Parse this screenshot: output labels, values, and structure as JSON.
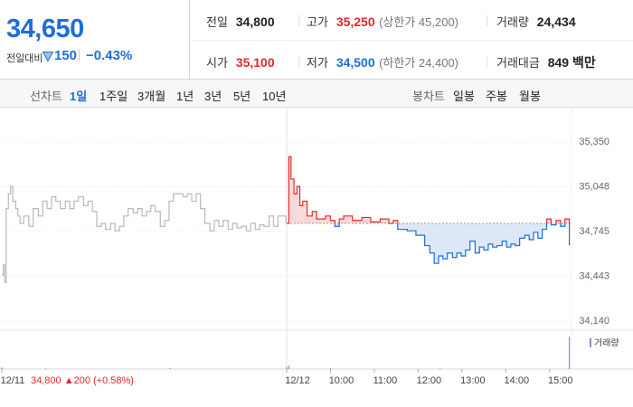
{
  "quote": {
    "price": "34,650",
    "change_label": "전일대비",
    "change": "150",
    "change_rate": "−0.43%"
  },
  "stats": [
    {
      "label": "전일",
      "value": "34,800"
    },
    {
      "label": "고가",
      "value": "35,250",
      "note": "(상한가 45,200)"
    },
    {
      "label": "거래량",
      "value": "24,434"
    },
    {
      "label": "시가",
      "value": "35,100"
    },
    {
      "label": "저가",
      "value": "34,500",
      "note": "(하한가 24,400)"
    },
    {
      "label": "거래대금",
      "value": "849 백만"
    }
  ],
  "tabs": {
    "line_label": "선차트",
    "line": [
      "1일",
      "1주일",
      "3개월",
      "1년",
      "3년",
      "5년",
      "10년"
    ],
    "candle_label": "봉차트",
    "candle": [
      "일봉",
      "주봉",
      "월봉"
    ]
  },
  "chart_data": {
    "type": "line",
    "step": true,
    "ylim": [
      34140,
      35350
    ],
    "yticks": [
      {
        "value": 35350,
        "label": "35,350"
      },
      {
        "value": 35048,
        "label": "35,048"
      },
      {
        "value": 34745,
        "label": "34,745"
      },
      {
        "value": 34443,
        "label": "34,443"
      },
      {
        "value": 34140,
        "label": "34,140"
      }
    ],
    "xlim": [
      0,
      780
    ],
    "xticks": [
      {
        "value": 0,
        "label": "12/11"
      },
      {
        "value": 390,
        "label": "12/12"
      },
      {
        "value": 450,
        "label": "10:00"
      },
      {
        "value": 510,
        "label": "11:00"
      },
      {
        "value": 570,
        "label": "12:00"
      },
      {
        "value": 630,
        "label": "13:00"
      },
      {
        "value": 690,
        "label": "14:00"
      },
      {
        "value": 750,
        "label": "15:00"
      }
    ],
    "reference": 34800,
    "prev_day_annotation": "34,800 ▲200 (+0.58%)",
    "series": [
      {
        "color": "#b9b9b9",
        "x": [
          0,
          2,
          4,
          6,
          9,
          12,
          15,
          19,
          22,
          25,
          30,
          37,
          43,
          50,
          56,
          62,
          68,
          74,
          80,
          87,
          93,
          99,
          105,
          112,
          118,
          124,
          130,
          136,
          142,
          149,
          155,
          161,
          167,
          173,
          180,
          186,
          192,
          198,
          204,
          210,
          217,
          223,
          229,
          235,
          241,
          248,
          254,
          260,
          266,
          272,
          278,
          285,
          291,
          297,
          303,
          310,
          316,
          322,
          328,
          335,
          341,
          347,
          353,
          359,
          366,
          372,
          378,
          384,
          389
        ],
        "values": [
          34450,
          34520,
          34400,
          34900,
          35000,
          35050,
          34950,
          34900,
          34850,
          34800,
          34850,
          34780,
          34900,
          34850,
          34950,
          34900,
          34980,
          34950,
          34900,
          34950,
          34900,
          34950,
          34980,
          34920,
          34950,
          34880,
          34780,
          34800,
          34760,
          34800,
          34750,
          34780,
          34850,
          34900,
          34870,
          34900,
          34850,
          34880,
          34920,
          34880,
          34780,
          34820,
          34950,
          35000,
          35000,
          34980,
          35000,
          34950,
          35000,
          34900,
          34800,
          34750,
          34820,
          34780,
          34820,
          34760,
          34800,
          34770,
          34780,
          34750,
          34800,
          34760,
          34790,
          34780,
          34850,
          34780,
          34850,
          34850,
          34800
        ]
      },
      {
        "color": "#e22b2b",
        "color_below": "#1a6fd6",
        "fill": "#f9d9dc",
        "fill_below": "#dce8f8",
        "x": [
          390,
          393,
          396,
          400,
          404,
          408,
          412,
          418,
          425,
          431,
          443,
          450,
          456,
          462,
          468,
          480,
          493,
          505,
          518,
          530,
          536,
          542,
          555,
          567,
          579,
          586,
          592,
          598,
          604,
          610,
          617,
          623,
          629,
          635,
          641,
          648,
          654,
          660,
          666,
          672,
          678,
          685,
          691,
          697,
          703,
          709,
          716,
          722,
          728,
          734,
          740,
          746,
          752,
          759,
          765,
          771,
          777
        ],
        "values": [
          34800,
          35250,
          35100,
          35000,
          35050,
          34920,
          34950,
          34850,
          34880,
          34830,
          34850,
          34820,
          34780,
          34830,
          34850,
          34820,
          34840,
          34810,
          34830,
          34800,
          34820,
          34760,
          34750,
          34720,
          34650,
          34600,
          34530,
          34580,
          34560,
          34600,
          34570,
          34600,
          34580,
          34620,
          34680,
          34600,
          34640,
          34620,
          34660,
          34640,
          34650,
          34680,
          34640,
          34660,
          34650,
          34700,
          34720,
          34690,
          34740,
          34700,
          34760,
          34830,
          34790,
          34820,
          34780,
          34830,
          34650
        ]
      }
    ],
    "volume": {
      "name": "거래량",
      "color": "#9a84c9",
      "x": [
        0,
        60,
        230,
        390,
        393,
        450,
        600,
        777
      ],
      "values": [
        150,
        60,
        80,
        200,
        300,
        60,
        50,
        3000
      ]
    }
  }
}
